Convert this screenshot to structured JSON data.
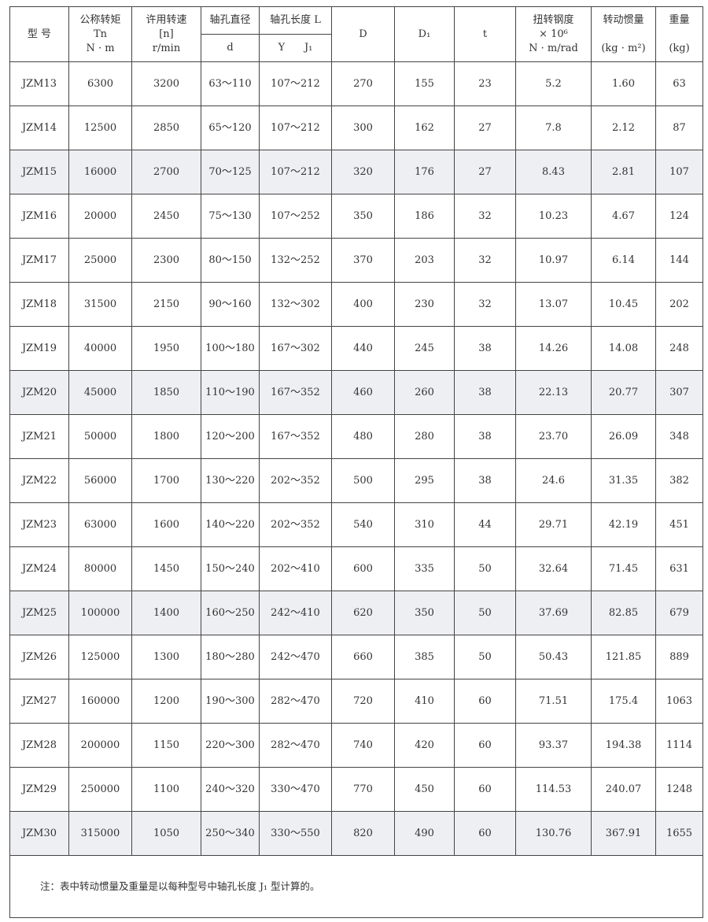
{
  "header": {
    "model": "型 号",
    "torque": [
      "公称转矩",
      "Tn",
      "N · m"
    ],
    "speed": [
      "许用转速",
      "[n]",
      "r/min"
    ],
    "bore_dia": "轴孔直径",
    "bore_dia_sub": "d",
    "bore_len": "轴孔长度 L",
    "bore_len_sub": "Y      J₁",
    "D": "D",
    "D1": "D₁",
    "t": "t",
    "stiffness": [
      "扭转钢度",
      "× 10⁶",
      "N · m/rad"
    ],
    "inertia": [
      "转动惯量",
      "(kg · m²)"
    ],
    "weight": [
      "重量",
      "(kg)"
    ]
  },
  "rows": [
    [
      "JZM13",
      "6300",
      "3200",
      "63～110",
      "107～212",
      "270",
      "155",
      "23",
      "5.2",
      "1.60",
      "63"
    ],
    [
      "JZM14",
      "12500",
      "2850",
      "65～120",
      "107～212",
      "300",
      "162",
      "27",
      "7.8",
      "2.12",
      "87"
    ],
    [
      "JZM15",
      "16000",
      "2700",
      "70～125",
      "107～212",
      "320",
      "176",
      "27",
      "8.43",
      "2.81",
      "107"
    ],
    [
      "JZM16",
      "20000",
      "2450",
      "75～130",
      "107～252",
      "350",
      "186",
      "32",
      "10.23",
      "4.67",
      "124"
    ],
    [
      "JZM17",
      "25000",
      "2300",
      "80～150",
      "132～252",
      "370",
      "203",
      "32",
      "10.97",
      "6.14",
      "144"
    ],
    [
      "JZM18",
      "31500",
      "2150",
      "90～160",
      "132～302",
      "400",
      "230",
      "32",
      "13.07",
      "10.45",
      "202"
    ],
    [
      "JZM19",
      "40000",
      "1950",
      "100～180",
      "167～302",
      "440",
      "245",
      "38",
      "14.26",
      "14.08",
      "248"
    ],
    [
      "JZM20",
      "45000",
      "1850",
      "110～190",
      "167～352",
      "460",
      "260",
      "38",
      "22.13",
      "20.77",
      "307"
    ],
    [
      "JZM21",
      "50000",
      "1800",
      "120～200",
      "167～352",
      "480",
      "280",
      "38",
      "23.70",
      "26.09",
      "348"
    ],
    [
      "JZM22",
      "56000",
      "1700",
      "130～220",
      "202～352",
      "500",
      "295",
      "38",
      "24.6",
      "31.35",
      "382"
    ],
    [
      "JZM23",
      "63000",
      "1600",
      "140～220",
      "202～352",
      "540",
      "310",
      "44",
      "29.71",
      "42.19",
      "451"
    ],
    [
      "JZM24",
      "80000",
      "1450",
      "150～240",
      "202～410",
      "600",
      "335",
      "50",
      "32.64",
      "71.45",
      "631"
    ],
    [
      "JZM25",
      "100000",
      "1400",
      "160～250",
      "242～410",
      "620",
      "350",
      "50",
      "37.69",
      "82.85",
      "679"
    ],
    [
      "JZM26",
      "125000",
      "1300",
      "180～280",
      "242～470",
      "660",
      "385",
      "50",
      "50.43",
      "121.85",
      "889"
    ],
    [
      "JZM27",
      "160000",
      "1200",
      "190～300",
      "282～470",
      "720",
      "410",
      "60",
      "71.51",
      "175.4",
      "1063"
    ],
    [
      "JZM28",
      "200000",
      "1150",
      "220～300",
      "282～470",
      "740",
      "420",
      "60",
      "93.37",
      "194.38",
      "1114"
    ],
    [
      "JZM29",
      "250000",
      "1100",
      "240～320",
      "330～470",
      "770",
      "450",
      "60",
      "114.53",
      "240.07",
      "1248"
    ],
    [
      "JZM30",
      "315000",
      "1050",
      "250～340",
      "330～550",
      "820",
      "490",
      "60",
      "130.76",
      "367.91",
      "1655"
    ]
  ],
  "shaded_rows": [
    "JZM15",
    "JZM20",
    "JZM25",
    "JZM30"
  ],
  "note": "注：表中转动惯量及重量是以每种型号中轴孔长度 J₁ 型计算的。"
}
